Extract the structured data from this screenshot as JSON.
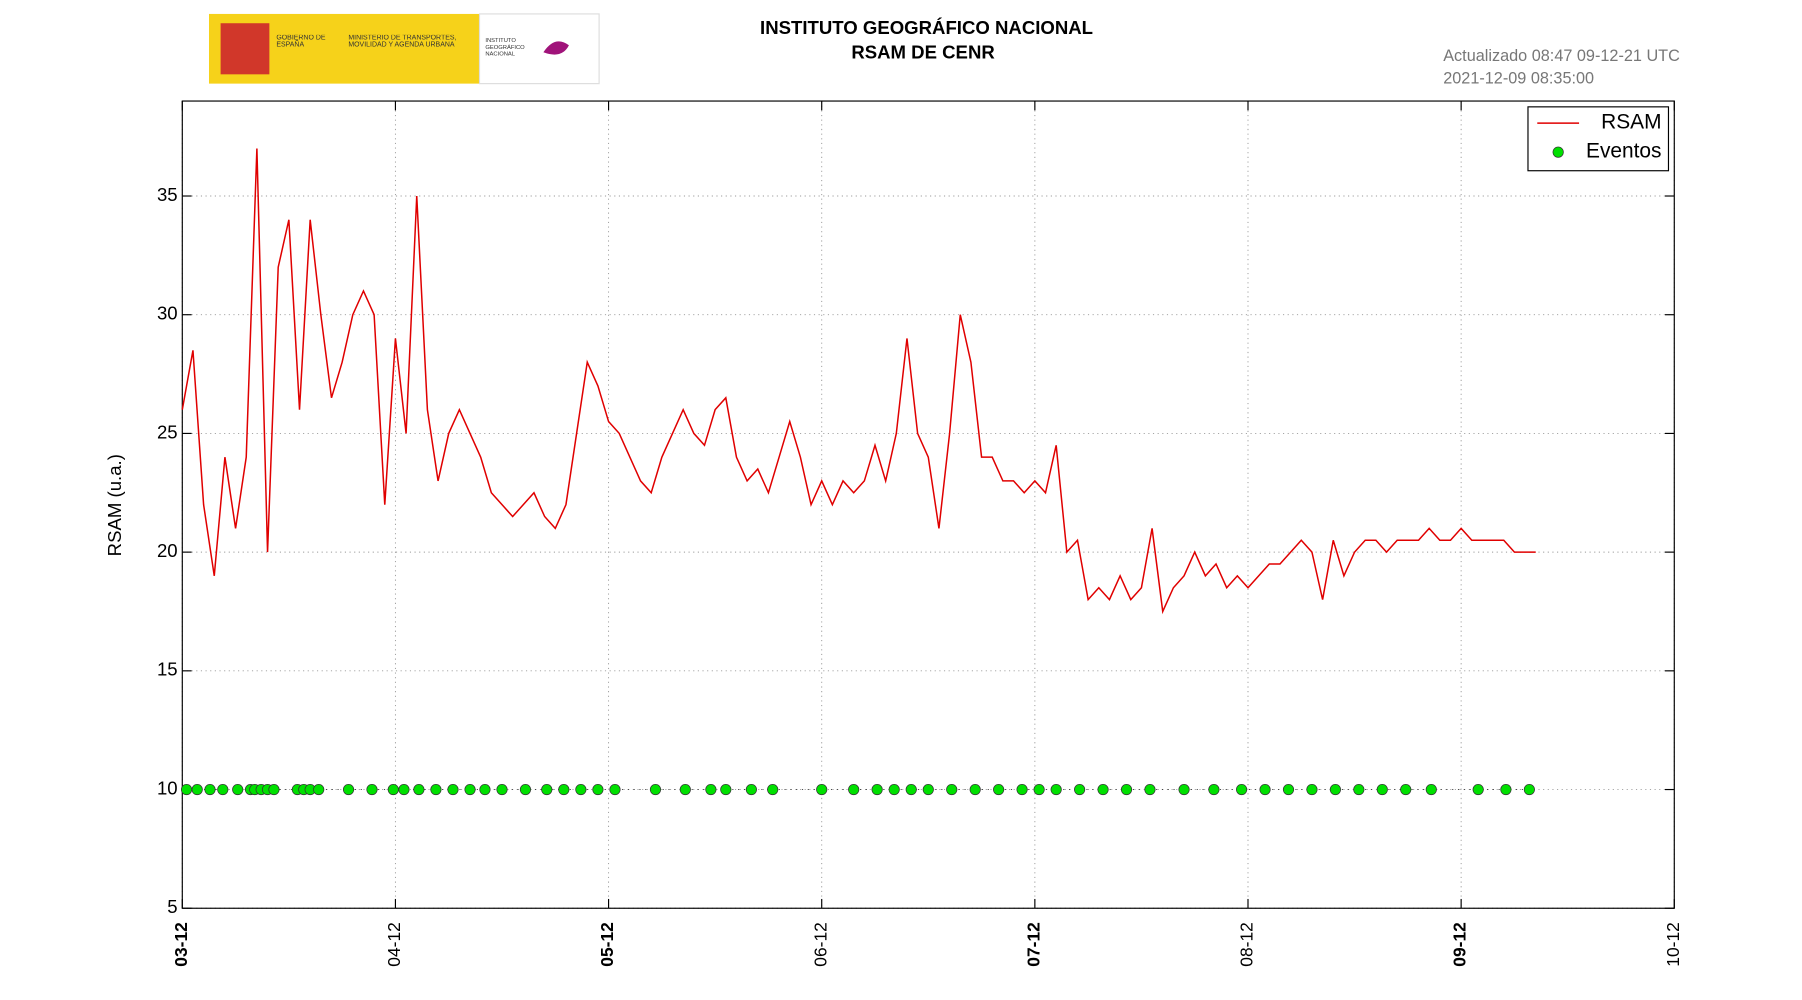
{
  "header": {
    "logo_gov": "GOBIERNO DE ESPAÑA",
    "logo_ministry": "MINISTERIO DE TRANSPORTES, MOVILIDAD Y AGENDA URBANA",
    "logo_ign": "INSTITUTO GEOGRÁFICO NACIONAL",
    "updated": "Actualizado 08:47 09-12-21 UTC",
    "timestamp": "2021-12-09 08:35:00"
  },
  "chart_data": {
    "type": "line",
    "title": "INSTITUTO GEOGRÁFICO NACIONAL",
    "subtitle": "RSAM DE CENR",
    "ylabel": "RSAM (u.a.)",
    "xlim": [
      0,
      7
    ],
    "xticks": [
      {
        "value": 0,
        "label": "03-12"
      },
      {
        "value": 1,
        "label": "04-12"
      },
      {
        "value": 2,
        "label": "05-12"
      },
      {
        "value": 3,
        "label": "06-12"
      },
      {
        "value": 4,
        "label": "07-12"
      },
      {
        "value": 5,
        "label": "08-12"
      },
      {
        "value": 6,
        "label": "09-12"
      },
      {
        "value": 7,
        "label": "10-12"
      }
    ],
    "ylim": [
      5,
      39
    ],
    "yticks": [
      5,
      10,
      15,
      20,
      25,
      30,
      35
    ],
    "grid": true,
    "legend": "upper right",
    "series": [
      {
        "name": "RSAM",
        "color": "#e00000",
        "type": "line",
        "x": [
          0,
          0.05,
          0.1,
          0.15,
          0.2,
          0.25,
          0.3,
          0.35,
          0.4,
          0.45,
          0.5,
          0.55,
          0.6,
          0.65,
          0.7,
          0.75,
          0.8,
          0.85,
          0.9,
          0.95,
          1,
          1.05,
          1.1,
          1.15,
          1.2,
          1.25,
          1.3,
          1.35,
          1.4,
          1.45,
          1.5,
          1.55,
          1.6,
          1.65,
          1.7,
          1.75,
          1.8,
          1.85,
          1.9,
          1.95,
          2,
          2.05,
          2.1,
          2.15,
          2.2,
          2.25,
          2.3,
          2.35,
          2.4,
          2.45,
          2.5,
          2.55,
          2.6,
          2.65,
          2.7,
          2.75,
          2.8,
          2.85,
          2.9,
          2.95,
          3,
          3.05,
          3.1,
          3.15,
          3.2,
          3.25,
          3.3,
          3.35,
          3.4,
          3.45,
          3.5,
          3.55,
          3.6,
          3.65,
          3.7,
          3.75,
          3.8,
          3.85,
          3.9,
          3.95,
          4,
          4.05,
          4.1,
          4.15,
          4.2,
          4.25,
          4.3,
          4.35,
          4.4,
          4.45,
          4.5,
          4.55,
          4.6,
          4.65,
          4.7,
          4.75,
          4.8,
          4.85,
          4.9,
          4.95,
          5,
          5.05,
          5.1,
          5.15,
          5.2,
          5.25,
          5.3,
          5.35,
          5.4,
          5.45,
          5.5,
          5.55,
          5.6,
          5.65,
          5.7,
          5.75,
          5.8,
          5.85,
          5.9,
          5.95,
          6,
          6.05,
          6.1,
          6.15,
          6.2,
          6.25,
          6.3,
          6.35
        ],
        "values": [
          26,
          28.5,
          22,
          19,
          24,
          21,
          24,
          37,
          20,
          32,
          34,
          26,
          34,
          30,
          26.5,
          28,
          30,
          31,
          30,
          22,
          29,
          25,
          35,
          26,
          23,
          25,
          26,
          25,
          24,
          22.5,
          22,
          21.5,
          22,
          22.5,
          21.5,
          21,
          22,
          25,
          28,
          27,
          25.5,
          25,
          24,
          23,
          22.5,
          24,
          25,
          26,
          25,
          24.5,
          26,
          26.5,
          24,
          23,
          23.5,
          22.5,
          24,
          25.5,
          24,
          22,
          23,
          22,
          23,
          22.5,
          23,
          24.5,
          23,
          25,
          29,
          25,
          24,
          21,
          25,
          30,
          28,
          24,
          24,
          23,
          23,
          22.5,
          23,
          22.5,
          24.5,
          20,
          20.5,
          18,
          18.5,
          18,
          19,
          18,
          18.5,
          21,
          17.5,
          18.5,
          19,
          20,
          19,
          19.5,
          18.5,
          19,
          18.5,
          19,
          19.5,
          19.5,
          20,
          20.5,
          20,
          18,
          20.5,
          19,
          20,
          20.5,
          20.5,
          20,
          20.5,
          20.5,
          20.5,
          21,
          20.5,
          20.5,
          21,
          20.5,
          20.5,
          20.5,
          20.5,
          20,
          20,
          20
        ]
      },
      {
        "name": "Eventos",
        "color": "#00e000",
        "type": "scatter",
        "x": [
          0.02,
          0.07,
          0.13,
          0.19,
          0.26,
          0.32,
          0.34,
          0.37,
          0.4,
          0.43,
          0.54,
          0.57,
          0.6,
          0.64,
          0.78,
          0.89,
          0.99,
          1.04,
          1.11,
          1.19,
          1.27,
          1.35,
          1.42,
          1.5,
          1.61,
          1.71,
          1.79,
          1.87,
          1.95,
          2.03,
          2.22,
          2.36,
          2.48,
          2.55,
          2.67,
          2.77,
          3,
          3.15,
          3.26,
          3.34,
          3.42,
          3.5,
          3.61,
          3.72,
          3.83,
          3.94,
          4.02,
          4.1,
          4.21,
          4.32,
          4.43,
          4.54,
          4.7,
          4.84,
          4.97,
          5.08,
          5.19,
          5.3,
          5.41,
          5.52,
          5.63,
          5.74,
          5.86,
          6.08,
          6.21,
          6.32
        ],
        "values": [
          10,
          10,
          10,
          10,
          10,
          10,
          10,
          10,
          10,
          10,
          10,
          10,
          10,
          10,
          10,
          10,
          10,
          10,
          10,
          10,
          10,
          10,
          10,
          10,
          10,
          10,
          10,
          10,
          10,
          10,
          10,
          10,
          10,
          10,
          10,
          10,
          10,
          10,
          10,
          10,
          10,
          10,
          10,
          10,
          10,
          10,
          10,
          10,
          10,
          10,
          10,
          10,
          10,
          10,
          10,
          10,
          10,
          10,
          10,
          10,
          10,
          10,
          10,
          10,
          10,
          10
        ]
      }
    ]
  }
}
